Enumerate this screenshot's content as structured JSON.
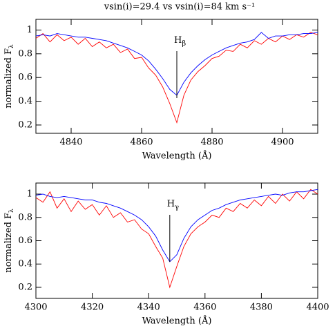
{
  "chart_data": [
    {
      "type": "line",
      "title": "vsin(i)=29.4  vs  vsin(i)=84  km s⁻¹",
      "xlabel": "Wavelength (Å)",
      "ylabel": "normalized F",
      "ylabel_subscript": "λ",
      "annotation": {
        "text": "H",
        "subscript": "β",
        "x": 4870
      },
      "xlim": [
        4830,
        4910
      ],
      "xticks": [
        4840,
        4860,
        4880,
        4900
      ],
      "ylim": [
        0.13,
        1.09
      ],
      "yticks": [
        0.2,
        0.4,
        0.6,
        0.8,
        1
      ],
      "x": [
        4830,
        4832,
        4834,
        4836,
        4838,
        4840,
        4842,
        4844,
        4846,
        4848,
        4850,
        4852,
        4854,
        4856,
        4858,
        4860,
        4862,
        4864,
        4866,
        4868,
        4870,
        4872,
        4874,
        4876,
        4878,
        4880,
        4882,
        4884,
        4886,
        4888,
        4890,
        4892,
        4894,
        4896,
        4898,
        4900,
        4902,
        4904,
        4906,
        4908,
        4910
      ],
      "series": [
        {
          "color": "#ff0000",
          "values": [
            0.93,
            0.97,
            0.9,
            0.96,
            0.91,
            0.94,
            0.88,
            0.93,
            0.86,
            0.9,
            0.85,
            0.88,
            0.81,
            0.84,
            0.76,
            0.77,
            0.68,
            0.62,
            0.52,
            0.38,
            0.22,
            0.45,
            0.58,
            0.65,
            0.7,
            0.76,
            0.78,
            0.83,
            0.82,
            0.88,
            0.85,
            0.91,
            0.88,
            0.93,
            0.9,
            0.95,
            0.92,
            0.96,
            0.94,
            0.98,
            0.96
          ]
        },
        {
          "color": "#0000ff",
          "values": [
            0.95,
            0.96,
            0.95,
            0.97,
            0.96,
            0.95,
            0.94,
            0.94,
            0.93,
            0.92,
            0.91,
            0.89,
            0.87,
            0.85,
            0.82,
            0.79,
            0.74,
            0.67,
            0.59,
            0.5,
            0.45,
            0.56,
            0.64,
            0.7,
            0.75,
            0.79,
            0.82,
            0.85,
            0.87,
            0.89,
            0.9,
            0.92,
            0.98,
            0.93,
            0.95,
            0.95,
            0.96,
            0.96,
            0.97,
            0.97,
            0.98
          ]
        }
      ]
    },
    {
      "type": "line",
      "xlabel": "Wavelength (Å)",
      "ylabel": "normalized F",
      "ylabel_subscript": "λ",
      "annotation": {
        "text": "H",
        "subscript": "γ",
        "x": 4347.5
      },
      "xlim": [
        4300,
        4400
      ],
      "xticks": [
        4300,
        4320,
        4340,
        4360,
        4380,
        4400
      ],
      "ylim": [
        0.105,
        1.095
      ],
      "yticks": [
        0.2,
        0.4,
        0.6,
        0.8,
        1
      ],
      "x": [
        4300,
        4302.5,
        4305,
        4307.5,
        4310,
        4312.5,
        4315,
        4317.5,
        4320,
        4322.5,
        4325,
        4327.5,
        4330,
        4332.5,
        4335,
        4337.5,
        4340,
        4342.5,
        4345,
        4347.5,
        4350,
        4352.5,
        4355,
        4357.5,
        4360,
        4362.5,
        4365,
        4367.5,
        4370,
        4372.5,
        4375,
        4377.5,
        4380,
        4382.5,
        4385,
        4387.5,
        4390,
        4392.5,
        4395,
        4397.5,
        4400
      ],
      "series": [
        {
          "color": "#ff0000",
          "values": [
            0.97,
            0.93,
            1.02,
            0.88,
            0.96,
            0.85,
            0.94,
            0.87,
            0.91,
            0.82,
            0.9,
            0.8,
            0.84,
            0.76,
            0.78,
            0.7,
            0.66,
            0.55,
            0.45,
            0.2,
            0.38,
            0.55,
            0.66,
            0.72,
            0.76,
            0.82,
            0.8,
            0.88,
            0.85,
            0.92,
            0.88,
            0.95,
            0.9,
            0.98,
            0.92,
            1.0,
            0.94,
            1.02,
            0.96,
            1.04,
            1.0
          ]
        },
        {
          "color": "#0000ff",
          "values": [
            0.99,
            1.0,
            0.98,
            0.97,
            0.98,
            0.97,
            0.96,
            0.95,
            0.95,
            0.93,
            0.92,
            0.9,
            0.88,
            0.85,
            0.82,
            0.78,
            0.72,
            0.64,
            0.52,
            0.42,
            0.48,
            0.62,
            0.72,
            0.78,
            0.82,
            0.86,
            0.88,
            0.91,
            0.93,
            0.95,
            0.96,
            0.97,
            0.98,
            0.99,
            1.0,
            0.99,
            1.01,
            1.02,
            1.02,
            1.03,
            1.04
          ]
        }
      ]
    }
  ]
}
